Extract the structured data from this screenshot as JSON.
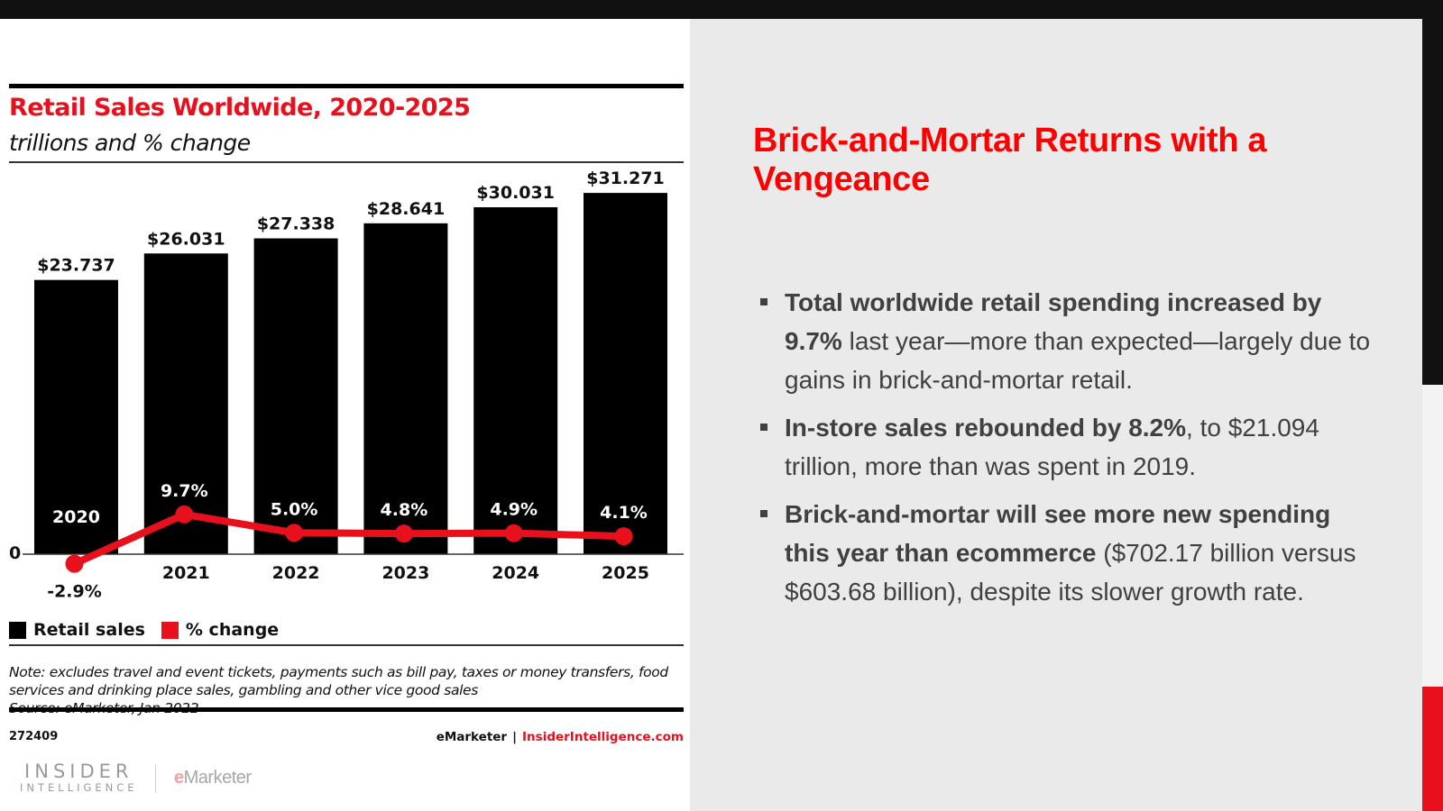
{
  "colors": {
    "accent_red": "#e8101c",
    "bar_black": "#000000",
    "slide_title_red": "#ff0000",
    "slide_bg": "#eaeaea"
  },
  "chart_data": {
    "type": "bar",
    "title": "Retail Sales Worldwide, 2020-2025",
    "subtitle": "trillions and % change",
    "categories": [
      "2020",
      "2021",
      "2022",
      "2023",
      "2024",
      "2025"
    ],
    "series": [
      {
        "name": "Retail sales",
        "type": "bar",
        "color": "#000000",
        "values": [
          23.737,
          26.031,
          27.338,
          28.641,
          30.031,
          31.271
        ],
        "labels": [
          "$23.737",
          "$26.031",
          "$27.338",
          "$28.641",
          "$30.031",
          "$31.271"
        ]
      },
      {
        "name": "% change",
        "type": "line",
        "color": "#e8101c",
        "values": [
          -2.9,
          9.7,
          5.0,
          4.8,
          4.9,
          4.1
        ],
        "labels": [
          "-2.9%",
          "9.7%",
          "5.0%",
          "4.8%",
          "4.9%",
          "4.1%"
        ]
      }
    ],
    "y_zero_label": "0",
    "ylim_bars": [
      0,
      32
    ],
    "xlabel": "",
    "ylabel": "",
    "grid": false,
    "legend_position": "bottom-left",
    "legend": [
      "Retail sales",
      "% change"
    ]
  },
  "chart_footer": {
    "note": "Note: excludes travel and event tickets, payments such as bill pay, taxes or money transfers, food services and drinking place sales, gambling and other vice good sales",
    "source": "Source: eMarketer, Jan 2022",
    "chart_id": "272409",
    "credit_brand": "eMarketer",
    "credit_separator": "|",
    "credit_site": "InsiderIntelligence.com"
  },
  "logos": {
    "insider_line1": "INSIDER",
    "insider_line2": "INTELLIGENCE",
    "emarketer_e": "e",
    "emarketer_rest": "Marketer"
  },
  "slide": {
    "title": "Brick-and-Mortar Returns with a Vengeance",
    "bullets": [
      {
        "bold": "Total worldwide retail spending increased by 9.7%",
        "rest": " last year—more than expected—largely due to gains in brick-and-mortar retail."
      },
      {
        "bold": "In-store sales rebounded by 8.2%",
        "rest": ", to $21.094 trillion, more than was spent in 2019."
      },
      {
        "bold": "Brick-and-mortar will see more new spending this year than ecommerce",
        "rest": " ($702.17 billion versus $603.68 billion), despite its slower growth rate."
      }
    ]
  }
}
